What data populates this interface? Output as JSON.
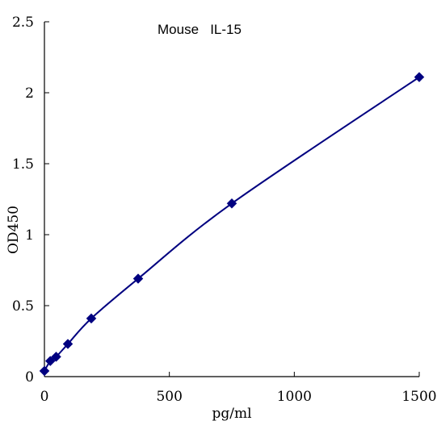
{
  "chart_data": {
    "type": "line",
    "title": "Mouse   IL-15",
    "xlabel": "pg/ml",
    "ylabel": "OD450",
    "xlim": [
      0,
      1500
    ],
    "ylim": [
      0,
      2.5
    ],
    "x_ticks": [
      0,
      500,
      1000,
      1500
    ],
    "x_tick_labels": [
      "0",
      "500",
      "1000",
      "1500"
    ],
    "y_ticks": [
      0,
      0.5,
      1,
      1.5,
      2,
      2.5
    ],
    "y_tick_labels": [
      "0",
      "0.5",
      "1",
      "1.5",
      "2",
      "2.5"
    ],
    "grid": false,
    "smooth": true,
    "colors": {
      "series": "#000080",
      "axis": "#000000"
    },
    "series": [
      {
        "x": [
          0,
          23.4,
          46.9,
          93.8,
          187.5,
          375,
          750,
          1500
        ],
        "y": [
          0.04,
          0.11,
          0.14,
          0.23,
          0.41,
          0.69,
          1.22,
          2.11
        ]
      }
    ]
  }
}
